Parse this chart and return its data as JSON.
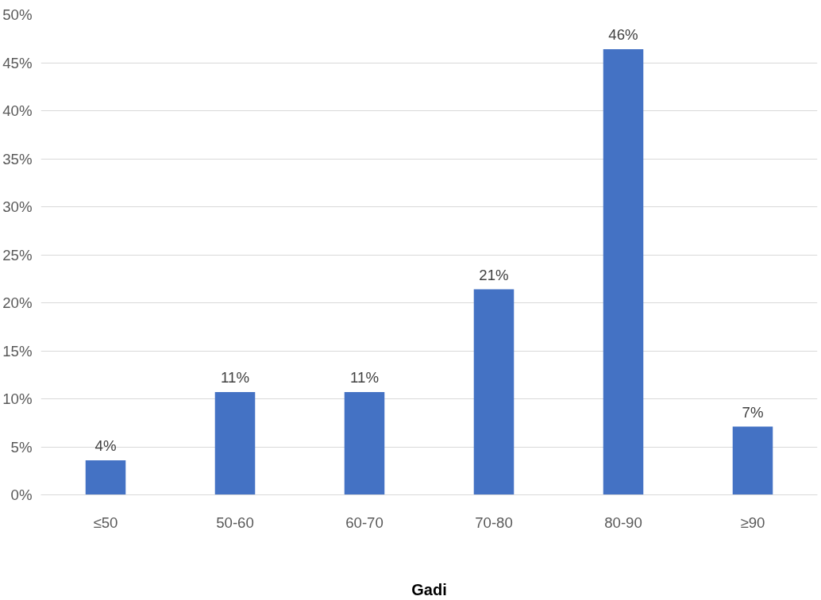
{
  "chart_data": {
    "type": "bar",
    "xlabel": "Gadi",
    "categories": [
      "≤50",
      "50-60",
      "60-70",
      "70-80",
      "80-90",
      "≥90"
    ],
    "values": [
      3.6,
      10.7,
      10.7,
      21.4,
      46.4,
      7.1
    ],
    "value_labels": [
      "4%",
      "11%",
      "11%",
      "21%",
      "46%",
      "7%"
    ],
    "color": "#4472c4",
    "ylim": [
      0,
      50
    ],
    "yticks": [
      {
        "value": 0,
        "label": "0%"
      },
      {
        "value": 5,
        "label": "5%"
      },
      {
        "value": 10,
        "label": "10%"
      },
      {
        "value": 15,
        "label": "15%"
      },
      {
        "value": 20,
        "label": "20%"
      },
      {
        "value": 25,
        "label": "25%"
      },
      {
        "value": 30,
        "label": "30%"
      },
      {
        "value": 35,
        "label": "35%"
      },
      {
        "value": 40,
        "label": "40%"
      },
      {
        "value": 45,
        "label": "45%"
      },
      {
        "value": 50,
        "label": "50%"
      }
    ],
    "grid": "y"
  }
}
